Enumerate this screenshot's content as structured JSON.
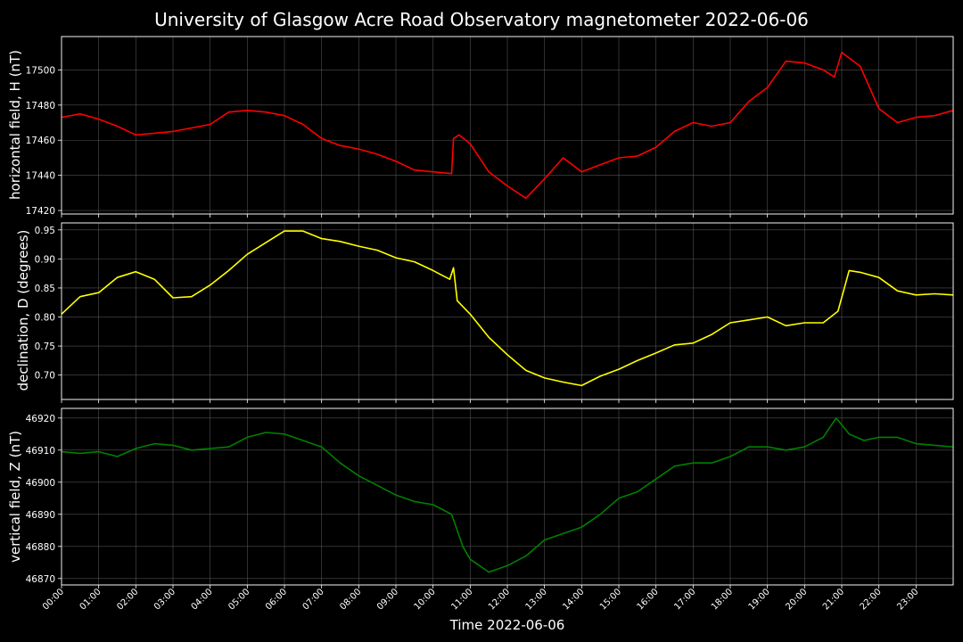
{
  "chart_data": [
    {
      "type": "line",
      "title": "University of Glasgow Acre Road Observatory magnetometer 2022-06-06",
      "ylabel": "horizontal field, H (nT)",
      "xlabel": "",
      "ylim": [
        17418,
        17519
      ],
      "yticks": [
        "17420",
        "17440",
        "17460",
        "17480",
        "17500"
      ],
      "grid": true,
      "series": [
        {
          "color": "#ff0000",
          "x": [
            0,
            0.5,
            1,
            1.5,
            2,
            2.5,
            3,
            3.5,
            4,
            4.5,
            5,
            5.5,
            6,
            6.5,
            7,
            7.5,
            8,
            8.5,
            9,
            9.5,
            10,
            10.5,
            10.55,
            10.7,
            11,
            11.5,
            12,
            12.5,
            13,
            13.5,
            14,
            14.5,
            15,
            15.5,
            16,
            16.5,
            17,
            17.5,
            18,
            18.5,
            19,
            19.5,
            20,
            20.5,
            20.8,
            21,
            21.5,
            22,
            22.5,
            23,
            23.5,
            24
          ],
          "values": [
            17473,
            17475,
            17472,
            17468,
            17463,
            17464,
            17465,
            17467,
            17469,
            17476,
            17477,
            17476,
            17474,
            17469,
            17461,
            17457,
            17455,
            17452,
            17448,
            17443,
            17442,
            17441,
            17461,
            17463,
            17458,
            17442,
            17434,
            17427,
            17438,
            17450,
            17442,
            17446,
            17450,
            17451,
            17456,
            17465,
            17470,
            17468,
            17470,
            17482,
            17490,
            17505,
            17504,
            17500,
            17496,
            17510,
            17502,
            17478,
            17470,
            17473,
            17474,
            17477
          ]
        }
      ]
    },
    {
      "type": "line",
      "ylabel": "declination, D (degrees)",
      "xlabel": "",
      "ylim": [
        0.658,
        0.962
      ],
      "yticks": [
        "0.70",
        "0.75",
        "0.80",
        "0.85",
        "0.90",
        "0.95"
      ],
      "grid": true,
      "series": [
        {
          "color": "#ffff00",
          "x": [
            0,
            0.5,
            1,
            1.5,
            2,
            2.5,
            3,
            3.5,
            4,
            4.5,
            5,
            5.5,
            6,
            6.5,
            7,
            7.5,
            8,
            8.5,
            9,
            9.5,
            10,
            10.45,
            10.55,
            10.65,
            11,
            11.5,
            12,
            12.5,
            13,
            13.5,
            14,
            14.5,
            15,
            15.5,
            16,
            16.5,
            17,
            17.5,
            18,
            18.5,
            19,
            19.5,
            20,
            20.5,
            20.9,
            21.2,
            21.5,
            22,
            22.5,
            23,
            23.5,
            24
          ],
          "values": [
            0.805,
            0.835,
            0.842,
            0.868,
            0.878,
            0.865,
            0.833,
            0.835,
            0.855,
            0.88,
            0.908,
            0.928,
            0.948,
            0.948,
            0.935,
            0.93,
            0.922,
            0.915,
            0.902,
            0.895,
            0.88,
            0.865,
            0.885,
            0.828,
            0.805,
            0.765,
            0.735,
            0.708,
            0.695,
            0.688,
            0.682,
            0.698,
            0.71,
            0.725,
            0.738,
            0.752,
            0.755,
            0.77,
            0.79,
            0.795,
            0.8,
            0.785,
            0.79,
            0.79,
            0.81,
            0.88,
            0.877,
            0.868,
            0.845,
            0.838,
            0.84,
            0.838
          ]
        }
      ]
    },
    {
      "type": "line",
      "ylabel": "vertical field, Z (nT)",
      "xlabel": "Time 2022-06-06",
      "ylim": [
        46868,
        46923
      ],
      "yticks": [
        "46870",
        "46880",
        "46890",
        "46900",
        "46910",
        "46920"
      ],
      "grid": true,
      "categories": [
        "00:00",
        "01:00",
        "02:00",
        "03:00",
        "04:00",
        "05:00",
        "06:00",
        "07:00",
        "08:00",
        "09:00",
        "10:00",
        "11:00",
        "12:00",
        "13:00",
        "14:00",
        "15:00",
        "16:00",
        "17:00",
        "18:00",
        "19:00",
        "20:00",
        "21:00",
        "22:00",
        "23:00"
      ],
      "series": [
        {
          "color": "#008000",
          "x": [
            0,
            0.5,
            1,
            1.5,
            2,
            2.5,
            3,
            3.5,
            4,
            4.5,
            5,
            5.5,
            6,
            6.5,
            7,
            7.5,
            8,
            8.5,
            9,
            9.5,
            10,
            10.5,
            10.8,
            11,
            11.5,
            12,
            12.5,
            13,
            13.5,
            14,
            14.5,
            15,
            15.5,
            16,
            16.5,
            17,
            17.5,
            18,
            18.5,
            19,
            19.5,
            20,
            20.5,
            20.85,
            21.2,
            21.6,
            22,
            22.5,
            23,
            23.5,
            24
          ],
          "values": [
            46909.5,
            46909,
            46909.5,
            46908,
            46910.5,
            46912,
            46911.5,
            46910,
            46910.5,
            46911,
            46914,
            46915.5,
            46915,
            46913,
            46911,
            46906,
            46902,
            46899,
            46896,
            46894,
            46893,
            46890,
            46880,
            46876,
            46872,
            46874,
            46877,
            46882,
            46884,
            46886,
            46890,
            46895,
            46897,
            46901,
            46905,
            46906,
            46906,
            46908,
            46911,
            46911,
            46910,
            46911,
            46914,
            46920,
            46915,
            46913,
            46914,
            46914,
            46912,
            46911.5,
            46911
          ]
        }
      ]
    }
  ]
}
